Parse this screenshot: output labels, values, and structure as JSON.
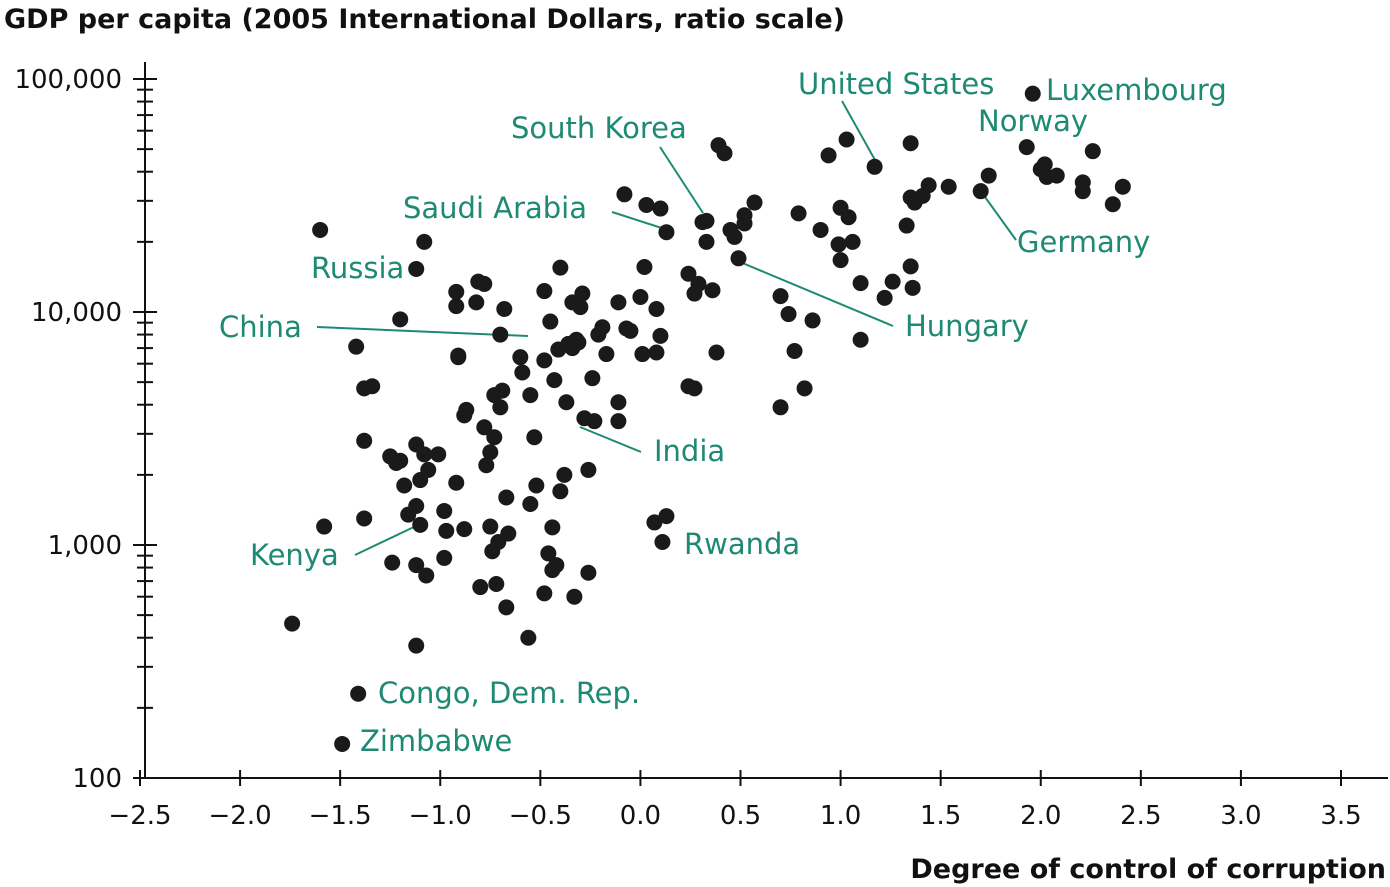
{
  "chart_data": {
    "type": "scatter",
    "ylabel": "GDP per capita (2005 International Dollars, ratio scale)",
    "xlabel": "Degree of control of corruption",
    "xlim": [
      -2.5,
      3.7
    ],
    "ylim": [
      100,
      140000
    ],
    "y_scale": "log",
    "grid": false,
    "legend": "none",
    "x_ticks": [
      -2.5,
      -2.0,
      -1.5,
      -1.0,
      -0.5,
      0.0,
      0.5,
      1.0,
      1.5,
      2.0,
      2.5,
      3.0,
      3.5
    ],
    "x_tick_labels": [
      "−2.5",
      "−2.0",
      "−1.5",
      "−1.0",
      "−0.5",
      "0.0",
      "0.5",
      "1.0",
      "1.5",
      "2.0",
      "2.5",
      "3.0",
      "3.5"
    ],
    "y_ticks": [
      100,
      1000,
      10000,
      100000
    ],
    "y_tick_labels": [
      "100",
      "1,000",
      "10,000",
      "100,000"
    ],
    "point_color": "#1a1a1a",
    "label_color": "#1f8a74",
    "points": [
      {
        "x": -1.74,
        "y": 460
      },
      {
        "x": -1.58,
        "y": 1200
      },
      {
        "x": -1.6,
        "y": 22500
      },
      {
        "x": -1.42,
        "y": 7100
      },
      {
        "x": -1.38,
        "y": 4700
      },
      {
        "x": -1.34,
        "y": 4800
      },
      {
        "x": -1.38,
        "y": 2800
      },
      {
        "x": -1.38,
        "y": 1300
      },
      {
        "x": -1.25,
        "y": 2400
      },
      {
        "x": -1.22,
        "y": 2250
      },
      {
        "x": -1.2,
        "y": 2300
      },
      {
        "x": -1.24,
        "y": 840
      },
      {
        "x": -1.18,
        "y": 1800
      },
      {
        "x": -1.16,
        "y": 1350
      },
      {
        "x": -1.2,
        "y": 9300
      },
      {
        "x": -1.12,
        "y": 15300
      },
      {
        "x": -1.08,
        "y": 20000
      },
      {
        "x": -1.12,
        "y": 2700
      },
      {
        "x": -1.1,
        "y": 1900
      },
      {
        "x": -1.06,
        "y": 2100
      },
      {
        "x": -1.08,
        "y": 2450
      },
      {
        "x": -1.01,
        "y": 2450
      },
      {
        "x": -1.12,
        "y": 1470
      },
      {
        "x": -1.1,
        "y": 1220
      },
      {
        "x": -1.12,
        "y": 820
      },
      {
        "x": -1.07,
        "y": 740
      },
      {
        "x": -0.98,
        "y": 880
      },
      {
        "x": -0.97,
        "y": 1150
      },
      {
        "x": -0.98,
        "y": 1400
      },
      {
        "x": -1.12,
        "y": 370
      },
      {
        "x": -0.92,
        "y": 1850
      },
      {
        "x": -0.91,
        "y": 6400
      },
      {
        "x": -0.91,
        "y": 6500
      },
      {
        "x": -0.92,
        "y": 12200
      },
      {
        "x": -0.92,
        "y": 10600
      },
      {
        "x": -0.88,
        "y": 3600
      },
      {
        "x": -0.87,
        "y": 3800
      },
      {
        "x": -0.88,
        "y": 1170
      },
      {
        "x": -0.82,
        "y": 11000
      },
      {
        "x": -0.81,
        "y": 13500
      },
      {
        "x": -0.78,
        "y": 13200
      },
      {
        "x": -0.78,
        "y": 3200
      },
      {
        "x": -0.77,
        "y": 2200
      },
      {
        "x": -0.75,
        "y": 2500
      },
      {
        "x": -0.73,
        "y": 2900
      },
      {
        "x": -0.73,
        "y": 4400
      },
      {
        "x": -0.7,
        "y": 3900
      },
      {
        "x": -0.69,
        "y": 4600
      },
      {
        "x": -0.7,
        "y": 8000
      },
      {
        "x": -0.68,
        "y": 10300
      },
      {
        "x": -0.75,
        "y": 1200
      },
      {
        "x": -0.74,
        "y": 940
      },
      {
        "x": -0.71,
        "y": 1030
      },
      {
        "x": -0.67,
        "y": 1600
      },
      {
        "x": -0.66,
        "y": 1120
      },
      {
        "x": -0.72,
        "y": 680
      },
      {
        "x": -0.8,
        "y": 660
      },
      {
        "x": -0.67,
        "y": 540
      },
      {
        "x": -0.6,
        "y": 6400
      },
      {
        "x": -0.59,
        "y": 5500
      },
      {
        "x": -0.55,
        "y": 4400
      },
      {
        "x": -0.55,
        "y": 1500
      },
      {
        "x": -0.52,
        "y": 1800
      },
      {
        "x": -0.53,
        "y": 2900
      },
      {
        "x": -0.48,
        "y": 12300
      },
      {
        "x": -0.48,
        "y": 6200
      },
      {
        "x": -0.45,
        "y": 9100
      },
      {
        "x": -0.46,
        "y": 920
      },
      {
        "x": -0.48,
        "y": 620
      },
      {
        "x": -0.56,
        "y": 400
      },
      {
        "x": -0.43,
        "y": 5100
      },
      {
        "x": -0.41,
        "y": 6900
      },
      {
        "x": -0.4,
        "y": 15500
      },
      {
        "x": -0.4,
        "y": 1700
      },
      {
        "x": -0.38,
        "y": 2000
      },
      {
        "x": -0.37,
        "y": 4100
      },
      {
        "x": -0.36,
        "y": 7300
      },
      {
        "x": -0.34,
        "y": 11000
      },
      {
        "x": -0.34,
        "y": 7000
      },
      {
        "x": -0.32,
        "y": 7600
      },
      {
        "x": -0.31,
        "y": 7400
      },
      {
        "x": -0.3,
        "y": 10500
      },
      {
        "x": -0.29,
        "y": 12000
      },
      {
        "x": -0.28,
        "y": 3500
      },
      {
        "x": -0.26,
        "y": 2100
      },
      {
        "x": -0.24,
        "y": 5200
      },
      {
        "x": -0.23,
        "y": 3400
      },
      {
        "x": -0.21,
        "y": 8000
      },
      {
        "x": -0.19,
        "y": 8600
      },
      {
        "x": -0.17,
        "y": 6600
      },
      {
        "x": -0.11,
        "y": 11000
      },
      {
        "x": -0.11,
        "y": 4100
      },
      {
        "x": -0.11,
        "y": 3400
      },
      {
        "x": -0.07,
        "y": 8500
      },
      {
        "x": -0.05,
        "y": 8300
      },
      {
        "x": -0.08,
        "y": 32000
      },
      {
        "x": -0.44,
        "y": 1190
      },
      {
        "x": -0.44,
        "y": 780
      },
      {
        "x": -0.33,
        "y": 600
      },
      {
        "x": -0.26,
        "y": 760
      },
      {
        "x": -0.42,
        "y": 820
      },
      {
        "x": 0.0,
        "y": 11600
      },
      {
        "x": 0.02,
        "y": 15600
      },
      {
        "x": 0.03,
        "y": 28800
      },
      {
        "x": 0.08,
        "y": 10300
      },
      {
        "x": 0.08,
        "y": 6700
      },
      {
        "x": 0.1,
        "y": 27800
      },
      {
        "x": 0.13,
        "y": 22000
      },
      {
        "x": 0.07,
        "y": 1250
      },
      {
        "x": 0.13,
        "y": 1330
      },
      {
        "x": 0.11,
        "y": 1030
      },
      {
        "x": 0.1,
        "y": 7900
      },
      {
        "x": 0.01,
        "y": 6600
      },
      {
        "x": 0.24,
        "y": 14600
      },
      {
        "x": 0.27,
        "y": 12000
      },
      {
        "x": 0.29,
        "y": 13200
      },
      {
        "x": 0.31,
        "y": 24300
      },
      {
        "x": 0.33,
        "y": 24600
      },
      {
        "x": 0.33,
        "y": 20000
      },
      {
        "x": 0.24,
        "y": 4800
      },
      {
        "x": 0.27,
        "y": 4700
      },
      {
        "x": 0.36,
        "y": 12400
      },
      {
        "x": 0.38,
        "y": 6700
      },
      {
        "x": 0.39,
        "y": 52000
      },
      {
        "x": 0.42,
        "y": 48000
      },
      {
        "x": 0.45,
        "y": 22500
      },
      {
        "x": 0.47,
        "y": 21000
      },
      {
        "x": 0.49,
        "y": 17000
      },
      {
        "x": 0.52,
        "y": 24000
      },
      {
        "x": 0.52,
        "y": 26000
      },
      {
        "x": 0.57,
        "y": 29500
      },
      {
        "x": 0.7,
        "y": 11700
      },
      {
        "x": 0.74,
        "y": 9800
      },
      {
        "x": 0.77,
        "y": 6800
      },
      {
        "x": 0.7,
        "y": 3900
      },
      {
        "x": 0.82,
        "y": 4700
      },
      {
        "x": 0.79,
        "y": 26500
      },
      {
        "x": 0.86,
        "y": 9200
      },
      {
        "x": 0.9,
        "y": 22500
      },
      {
        "x": 0.94,
        "y": 47000
      },
      {
        "x": 0.99,
        "y": 19500
      },
      {
        "x": 1.0,
        "y": 28000
      },
      {
        "x": 1.03,
        "y": 55000
      },
      {
        "x": 1.04,
        "y": 25500
      },
      {
        "x": 1.06,
        "y": 20000
      },
      {
        "x": 1.0,
        "y": 16700
      },
      {
        "x": 1.1,
        "y": 13300
      },
      {
        "x": 1.1,
        "y": 7600
      },
      {
        "x": 1.17,
        "y": 42000
      },
      {
        "x": 1.22,
        "y": 11500
      },
      {
        "x": 1.26,
        "y": 13500
      },
      {
        "x": 1.33,
        "y": 23500
      },
      {
        "x": 1.35,
        "y": 31000
      },
      {
        "x": 1.35,
        "y": 15700
      },
      {
        "x": 1.35,
        "y": 53000
      },
      {
        "x": 1.36,
        "y": 12700
      },
      {
        "x": 1.37,
        "y": 29500
      },
      {
        "x": 1.41,
        "y": 31500
      },
      {
        "x": 1.44,
        "y": 35000
      },
      {
        "x": 1.54,
        "y": 34500
      },
      {
        "x": 1.7,
        "y": 33000
      },
      {
        "x": 1.74,
        "y": 38500
      },
      {
        "x": 1.93,
        "y": 51000
      },
      {
        "x": 1.96,
        "y": 86500
      },
      {
        "x": 2.0,
        "y": 41000
      },
      {
        "x": 2.02,
        "y": 43000
      },
      {
        "x": 2.03,
        "y": 38000
      },
      {
        "x": 2.08,
        "y": 38500
      },
      {
        "x": 2.21,
        "y": 36000
      },
      {
        "x": 2.21,
        "y": 33000
      },
      {
        "x": 2.26,
        "y": 49000
      },
      {
        "x": 2.36,
        "y": 29000
      },
      {
        "x": 2.41,
        "y": 34500
      },
      {
        "x": -1.41,
        "y": 230
      },
      {
        "x": -1.49,
        "y": 140
      }
    ],
    "annotations": [
      {
        "label": "United States",
        "point": {
          "x": 1.17,
          "y": 42000
        }
      },
      {
        "label": "Luxembourg",
        "point": {
          "x": 1.96,
          "y": 86500
        }
      },
      {
        "label": "Norway",
        "point": {
          "x": 1.93,
          "y": 51000
        }
      },
      {
        "label": "South Korea",
        "point": {
          "x": 0.33,
          "y": 24600
        }
      },
      {
        "label": "Saudi Arabia",
        "point": {
          "x": 0.13,
          "y": 22000
        }
      },
      {
        "label": "Germany",
        "point": {
          "x": 1.7,
          "y": 33000
        }
      },
      {
        "label": "Russia",
        "point": {
          "x": -1.12,
          "y": 15300
        }
      },
      {
        "label": "Hungary",
        "point": {
          "x": 0.49,
          "y": 17000
        }
      },
      {
        "label": "China",
        "point": {
          "x": -0.53,
          "y": 7900
        }
      },
      {
        "label": "India",
        "point": {
          "x": -0.35,
          "y": 3300
        }
      },
      {
        "label": "Rwanda",
        "point": {
          "x": 0.11,
          "y": 1030
        }
      },
      {
        "label": "Kenya",
        "point": {
          "x": -1.1,
          "y": 1250
        }
      },
      {
        "label": "Congo, Dem. Rep.",
        "point": {
          "x": -1.41,
          "y": 230
        }
      },
      {
        "label": "Zimbabwe",
        "point": {
          "x": -1.49,
          "y": 140
        }
      }
    ]
  }
}
